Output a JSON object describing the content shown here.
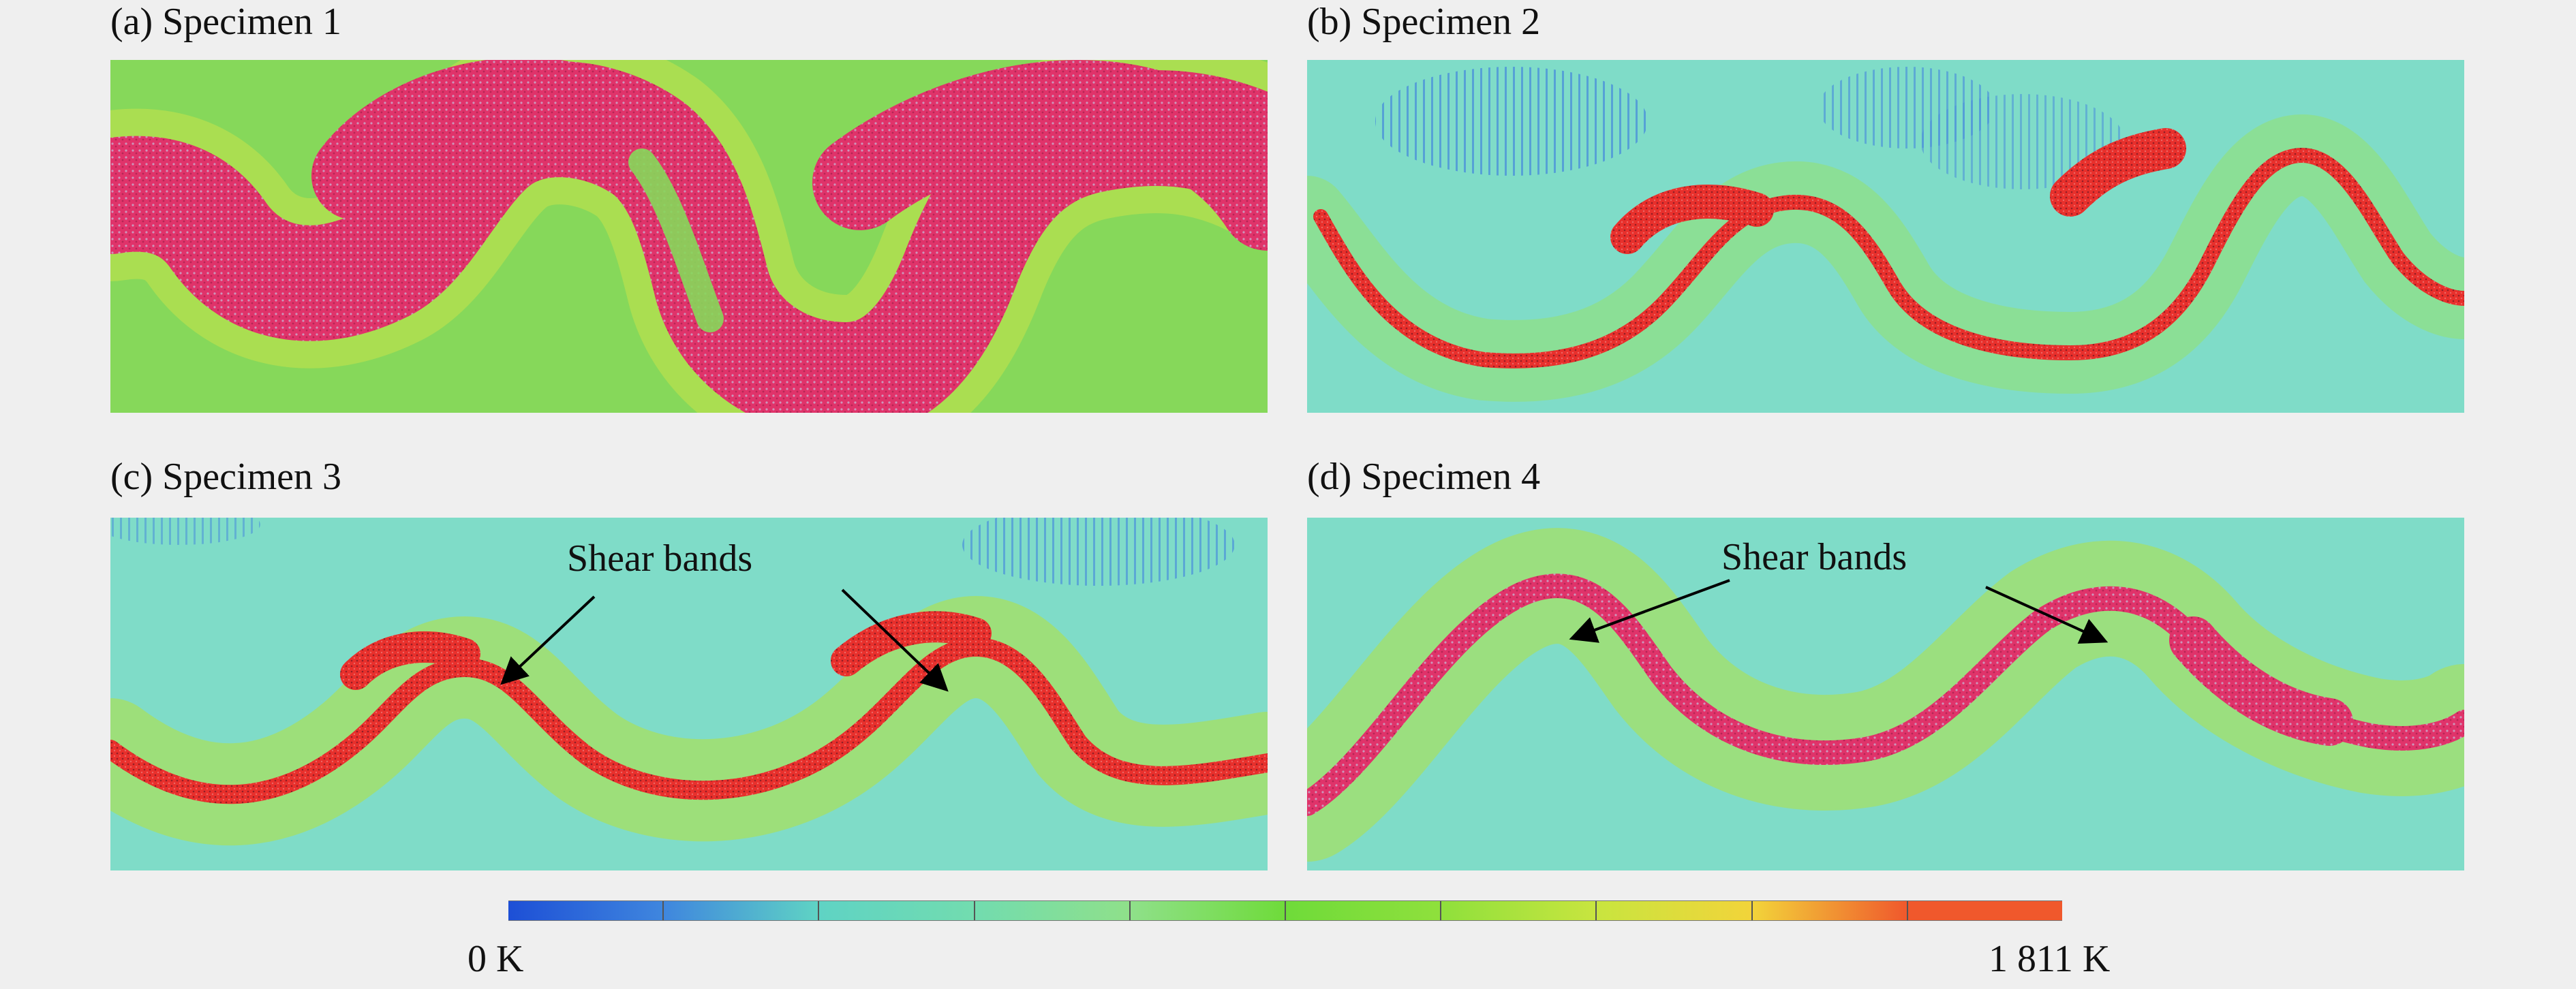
{
  "panels": [
    {
      "label": "(a) Specimen 1"
    },
    {
      "label": "(b) Specimen 2"
    },
    {
      "label": "(c) Specimen 3"
    },
    {
      "label": "(d) Specimen 4"
    }
  ],
  "annotations": {
    "shear_bands_c": "Shear bands",
    "shear_bands_d": "Shear bands"
  },
  "colorbar": {
    "min_label": "0 K",
    "max_label": "1 811 K",
    "min_value_K": 0,
    "max_value_K": 1811,
    "colors": [
      "#1d4fd6",
      "#3f86de",
      "#5fd3c4",
      "#72dcaf",
      "#8fe08a",
      "#6fdb3a",
      "#8fe03c",
      "#c8e53f",
      "#f2d43a",
      "#f0582c"
    ]
  },
  "palette": {
    "background": "#efefef",
    "field_green": "#86d85a",
    "field_cyan": "#7fdcc8",
    "band_magenta": "#e0336a",
    "band_red": "#e8302c",
    "halo_yellow": "#cde34e",
    "cold_blue": "#3b78e0"
  }
}
